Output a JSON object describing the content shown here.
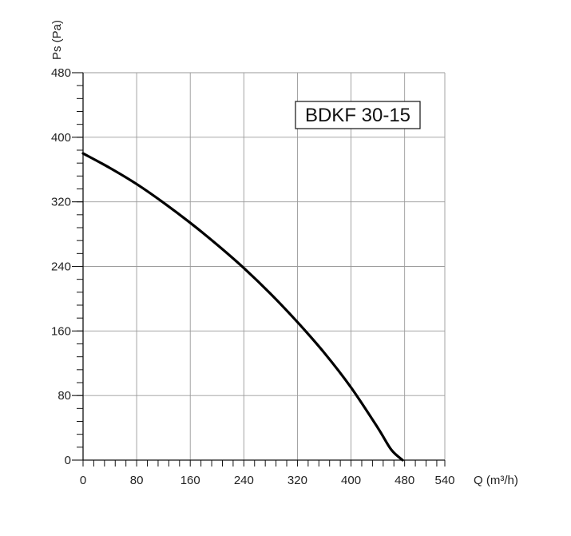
{
  "chart_data": {
    "type": "line",
    "title": "BDKF 30-15",
    "xlabel": "Q (m³/h)",
    "ylabel": "Ps (Pa)",
    "xlim": [
      0,
      540
    ],
    "ylim": [
      0,
      480
    ],
    "x_ticks": [
      0,
      80,
      160,
      240,
      320,
      400,
      480,
      540
    ],
    "y_ticks": [
      0,
      80,
      160,
      240,
      320,
      400,
      480
    ],
    "x_tick_labels": [
      "0",
      "80",
      "160",
      "240",
      "320",
      "400",
      "480",
      "540"
    ],
    "y_tick_labels": [
      "0",
      "80",
      "160",
      "240",
      "320",
      "400",
      "480"
    ],
    "grid": true,
    "series": [
      {
        "x": [
          0,
          40,
          80,
          120,
          160,
          200,
          240,
          280,
          320,
          360,
          400,
          440,
          460,
          477
        ],
        "y": [
          380,
          362,
          342,
          319,
          294,
          267,
          238,
          206,
          171,
          133,
          90,
          40,
          13,
          0
        ]
      }
    ]
  }
}
